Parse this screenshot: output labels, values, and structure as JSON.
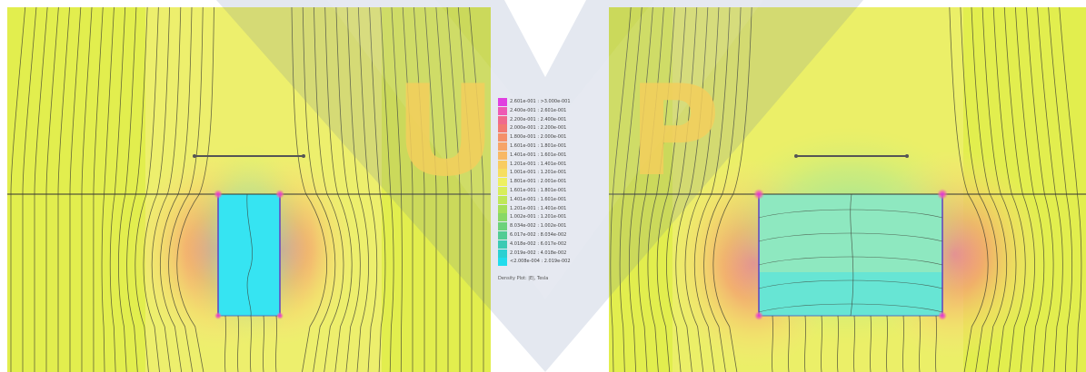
{
  "watermark": {
    "letters": [
      "U",
      "P"
    ]
  },
  "legend": {
    "title": "Density Plot: |E|, Tesla",
    "entries": [
      {
        "label": "2.601e-001 : >3.000e-001",
        "color": "#e040e0"
      },
      {
        "label": "2.400e-001 : 2.601e-001",
        "color": "#ee5ab4"
      },
      {
        "label": "2.200e-001 : 2.400e-001",
        "color": "#f06a8c"
      },
      {
        "label": "2.000e-001 : 2.200e-001",
        "color": "#f27a72"
      },
      {
        "label": "1.800e-001 : 2.000e-001",
        "color": "#f4906a"
      },
      {
        "label": "1.601e-001 : 1.801e-001",
        "color": "#f6a468"
      },
      {
        "label": "1.401e-001 : 1.601e-001",
        "color": "#f8b865"
      },
      {
        "label": "1.201e-001 : 1.401e-001",
        "color": "#f8cc62"
      },
      {
        "label": "1.001e-001 : 1.201e-001",
        "color": "#f6de60"
      },
      {
        "label": "1.801e-001 : 2.001e-001",
        "color": "#eef060"
      },
      {
        "label": "1.601e-001 : 1.801e-001",
        "color": "#d8ee5a"
      },
      {
        "label": "1.401e-001 : 1.601e-001",
        "color": "#bfe858"
      },
      {
        "label": "1.201e-001 : 1.401e-001",
        "color": "#a4e05a"
      },
      {
        "label": "1.002e-001 : 1.201e-001",
        "color": "#88d866"
      },
      {
        "label": "8.034e-002 : 1.002e-001",
        "color": "#6cd27a"
      },
      {
        "label": "6.017e-002 : 8.034e-002",
        "color": "#52cc94"
      },
      {
        "label": "4.018e-002 : 6.017e-002",
        "color": "#3ccab4"
      },
      {
        "label": "2.019e-002 : 4.018e-002",
        "color": "#2cd0d2"
      },
      {
        "label": "<2.008e-004 : 2.019e-002",
        "color": "#22dcec"
      }
    ]
  }
}
